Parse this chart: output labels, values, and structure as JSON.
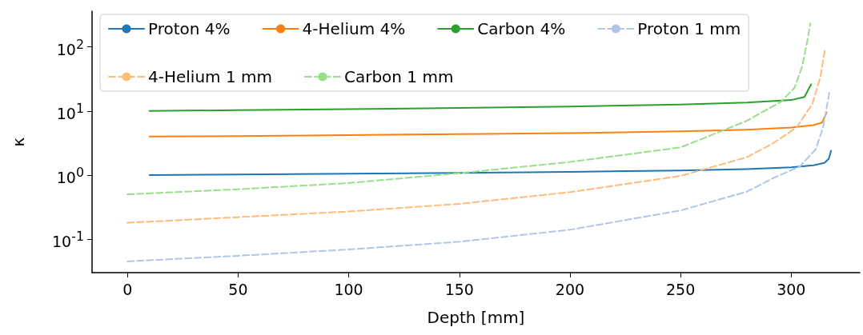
{
  "chart_data": {
    "type": "line",
    "xlabel": "Depth [mm]",
    "ylabel": "κ",
    "log": "y",
    "grid": false,
    "legend": "top left",
    "marker": "none",
    "xlim": [
      -16,
      331
    ],
    "xticks": [
      0,
      50,
      100,
      150,
      200,
      250,
      300
    ],
    "ylim": [
      0.03,
      360
    ],
    "yticks": [
      {
        "value": 0.1,
        "label": "10$^{-1}$"
      },
      {
        "value": 1,
        "label": "10$^{0}$"
      },
      {
        "value": 10,
        "label": "10$^{1}$"
      },
      {
        "value": 100,
        "label": "10$^{2}$"
      }
    ],
    "series": [
      {
        "name": "Proton 4%",
        "color": "#1f77b4",
        "line_style": "solid",
        "x": [
          10,
          50,
          100,
          150,
          200,
          250,
          280,
          300,
          310,
          315,
          317,
          318
        ],
        "values": [
          1.0,
          1.02,
          1.05,
          1.08,
          1.12,
          1.18,
          1.24,
          1.32,
          1.42,
          1.55,
          1.8,
          2.4
        ]
      },
      {
        "name": "4-Helium 4%",
        "color": "#ff7f0e",
        "line_style": "solid",
        "x": [
          10,
          50,
          100,
          150,
          200,
          250,
          280,
          300,
          310,
          314,
          316
        ],
        "values": [
          4.0,
          4.05,
          4.2,
          4.35,
          4.5,
          4.8,
          5.1,
          5.5,
          6.0,
          6.6,
          9.5
        ]
      },
      {
        "name": "Carbon 4%",
        "color": "#2ca02c",
        "line_style": "solid",
        "x": [
          10,
          50,
          100,
          150,
          200,
          250,
          280,
          300,
          306,
          309
        ],
        "values": [
          10,
          10.3,
          10.7,
          11.1,
          11.7,
          12.6,
          13.5,
          14.8,
          16.5,
          26
        ]
      },
      {
        "name": "Proton 1 mm",
        "color": "#aec7e8",
        "line_style": "dashed",
        "x": [
          0,
          50,
          100,
          150,
          200,
          250,
          280,
          292,
          304,
          311,
          314.4,
          317.3
        ],
        "values": [
          0.045,
          0.055,
          0.069,
          0.091,
          0.14,
          0.28,
          0.55,
          0.9,
          1.37,
          2.5,
          5.5,
          20
        ]
      },
      {
        "name": "4-Helium 1 mm",
        "color": "#ffbb78",
        "line_style": "dashed",
        "x": [
          0,
          50,
          100,
          150,
          200,
          250,
          280,
          291.6,
          302.4,
          309.6,
          313.2,
          315.2
        ],
        "values": [
          0.18,
          0.22,
          0.27,
          0.355,
          0.54,
          0.97,
          1.9,
          3.1,
          5.5,
          13,
          34,
          90
        ]
      },
      {
        "name": "Carbon 1 mm",
        "color": "#98df8a",
        "line_style": "dashed",
        "x": [
          0,
          50,
          100,
          150,
          200,
          250,
          279.5,
          295.5,
          301.5,
          305,
          307.4,
          308.6
        ],
        "values": [
          0.5,
          0.6,
          0.75,
          1.07,
          1.6,
          2.7,
          6.9,
          14,
          23,
          50,
          130,
          230
        ]
      }
    ]
  }
}
